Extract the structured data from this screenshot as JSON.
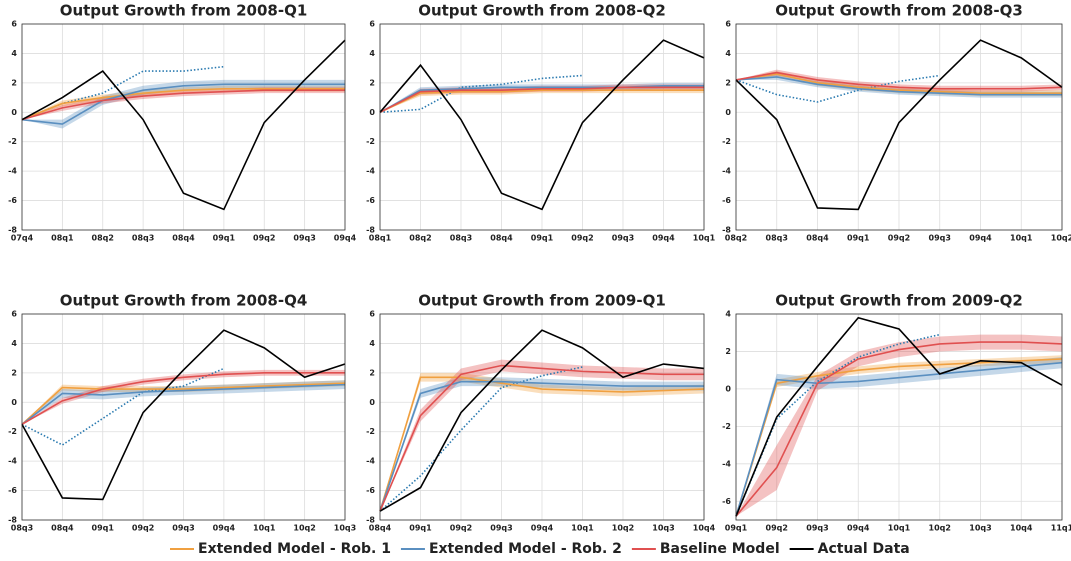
{
  "chart_data": [
    {
      "type": "line",
      "title": "Output Growth from 2008-Q1",
      "categories": [
        "07q4",
        "08q1",
        "08q2",
        "08q3",
        "08q4",
        "09q1",
        "09q2",
        "09q3",
        "09q4"
      ],
      "ylim": [
        -8,
        6
      ],
      "yticks": [
        -8,
        -6,
        -4,
        -2,
        0,
        2,
        4,
        6
      ],
      "grid": true,
      "series": [
        {
          "values": [
            -0.5,
            0.6,
            1.0,
            1.3,
            1.5,
            1.6,
            1.6,
            1.6,
            1.6
          ],
          "lower": [
            -0.5,
            0.4,
            0.8,
            1.1,
            1.3,
            1.4,
            1.4,
            1.4,
            1.4
          ],
          "upper": [
            -0.5,
            0.8,
            1.2,
            1.5,
            1.7,
            1.8,
            1.8,
            1.8,
            1.8
          ]
        },
        {
          "values": [
            -0.5,
            -0.8,
            0.8,
            1.5,
            1.8,
            1.9,
            1.9,
            1.9,
            1.9
          ],
          "lower": [
            -0.5,
            -1.1,
            0.5,
            1.2,
            1.5,
            1.6,
            1.6,
            1.6,
            1.6
          ],
          "upper": [
            -0.5,
            -0.5,
            1.1,
            1.8,
            2.1,
            2.2,
            2.2,
            2.2,
            2.2
          ]
        },
        {
          "values": [
            -0.5,
            0.3,
            0.8,
            1.1,
            1.3,
            1.4,
            1.5,
            1.5,
            1.5
          ],
          "lower": [
            -0.5,
            0.1,
            0.6,
            0.9,
            1.1,
            1.2,
            1.3,
            1.3,
            1.3
          ],
          "upper": [
            -0.5,
            0.5,
            1.0,
            1.3,
            1.5,
            1.6,
            1.7,
            1.7,
            1.7
          ]
        },
        {
          "values": [
            -0.5,
            1.0,
            2.8,
            -0.5,
            -5.5,
            -6.6,
            -0.7,
            2.2,
            4.9
          ]
        },
        {
          "style": "dotted",
          "color": "#2a7ab0",
          "values": [
            -0.5,
            0.6,
            1.3,
            2.8,
            2.8,
            3.1,
            null,
            null,
            null
          ]
        }
      ]
    },
    {
      "type": "line",
      "title": "Output Growth from 2008-Q2",
      "categories": [
        "08q1",
        "08q2",
        "08q3",
        "08q4",
        "09q1",
        "09q2",
        "09q3",
        "09q4",
        "10q1"
      ],
      "ylim": [
        -8,
        6
      ],
      "yticks": [
        -8,
        -6,
        -4,
        -2,
        0,
        2,
        4,
        6
      ],
      "grid": true,
      "series": [
        {
          "values": [
            0,
            1.3,
            1.4,
            1.4,
            1.5,
            1.5,
            1.5,
            1.5,
            1.5
          ],
          "lower": [
            0,
            1.1,
            1.2,
            1.2,
            1.3,
            1.3,
            1.3,
            1.3,
            1.3
          ],
          "upper": [
            0,
            1.5,
            1.6,
            1.6,
            1.7,
            1.7,
            1.7,
            1.7,
            1.7
          ]
        },
        {
          "values": [
            0,
            1.5,
            1.6,
            1.7,
            1.7,
            1.7,
            1.7,
            1.8,
            1.8
          ],
          "lower": [
            0,
            1.3,
            1.4,
            1.5,
            1.5,
            1.5,
            1.5,
            1.6,
            1.6
          ],
          "upper": [
            0,
            1.7,
            1.8,
            1.9,
            1.9,
            1.9,
            1.9,
            2.0,
            2.0
          ]
        },
        {
          "values": [
            0,
            1.4,
            1.5,
            1.5,
            1.6,
            1.6,
            1.7,
            1.7,
            1.7
          ],
          "lower": [
            0,
            1.2,
            1.3,
            1.3,
            1.4,
            1.4,
            1.5,
            1.5,
            1.5
          ],
          "upper": [
            0,
            1.6,
            1.7,
            1.7,
            1.8,
            1.8,
            1.9,
            1.9,
            1.9
          ]
        },
        {
          "values": [
            0,
            3.2,
            -0.5,
            -5.5,
            -6.6,
            -0.7,
            2.2,
            4.9,
            3.7
          ]
        },
        {
          "style": "dotted",
          "color": "#2a7ab0",
          "values": [
            0,
            0.2,
            1.7,
            1.9,
            2.3,
            2.5,
            null,
            null,
            null
          ]
        }
      ]
    },
    {
      "type": "line",
      "title": "Output Growth from 2008-Q3",
      "categories": [
        "08q2",
        "08q3",
        "08q4",
        "09q1",
        "09q2",
        "09q3",
        "09q4",
        "10q1",
        "10q2"
      ],
      "ylim": [
        -8,
        6
      ],
      "yticks": [
        -8,
        -6,
        -4,
        -2,
        0,
        2,
        4,
        6
      ],
      "grid": true,
      "series": [
        {
          "values": [
            2.2,
            2.6,
            2.0,
            1.7,
            1.5,
            1.4,
            1.3,
            1.3,
            1.3
          ],
          "lower": [
            2.2,
            2.4,
            1.8,
            1.5,
            1.3,
            1.2,
            1.1,
            1.1,
            1.1
          ],
          "upper": [
            2.2,
            2.8,
            2.2,
            1.9,
            1.7,
            1.6,
            1.5,
            1.5,
            1.5
          ]
        },
        {
          "values": [
            2.2,
            2.4,
            1.9,
            1.6,
            1.4,
            1.3,
            1.2,
            1.2,
            1.2
          ],
          "lower": [
            2.2,
            2.2,
            1.7,
            1.4,
            1.2,
            1.1,
            1.0,
            1.0,
            1.0
          ],
          "upper": [
            2.2,
            2.6,
            2.1,
            1.8,
            1.6,
            1.5,
            1.4,
            1.4,
            1.4
          ]
        },
        {
          "values": [
            2.2,
            2.7,
            2.2,
            1.9,
            1.7,
            1.6,
            1.6,
            1.6,
            1.7
          ],
          "lower": [
            2.2,
            2.5,
            2.0,
            1.7,
            1.5,
            1.4,
            1.4,
            1.4,
            1.5
          ],
          "upper": [
            2.2,
            2.9,
            2.4,
            2.1,
            1.9,
            1.8,
            1.8,
            1.8,
            1.9
          ]
        },
        {
          "values": [
            2.2,
            -0.5,
            -6.5,
            -6.6,
            -0.7,
            2.2,
            4.9,
            3.7,
            1.7
          ]
        },
        {
          "style": "dotted",
          "color": "#2a7ab0",
          "values": [
            2.2,
            1.2,
            0.7,
            1.5,
            2.1,
            2.5,
            null,
            null,
            null
          ]
        }
      ]
    },
    {
      "type": "line",
      "title": "Output Growth from 2008-Q4",
      "categories": [
        "08q3",
        "08q4",
        "09q1",
        "09q2",
        "09q3",
        "09q4",
        "10q1",
        "10q2",
        "10q3"
      ],
      "ylim": [
        -8,
        6
      ],
      "yticks": [
        -8,
        -6,
        -4,
        -2,
        0,
        2,
        4,
        6
      ],
      "grid": true,
      "series": [
        {
          "values": [
            -1.5,
            1.0,
            0.9,
            0.9,
            0.9,
            1.0,
            1.1,
            1.2,
            1.3
          ],
          "lower": [
            -1.5,
            0.8,
            0.7,
            0.7,
            0.7,
            0.8,
            0.9,
            1.0,
            1.1
          ],
          "upper": [
            -1.5,
            1.2,
            1.1,
            1.1,
            1.1,
            1.2,
            1.3,
            1.4,
            1.5
          ]
        },
        {
          "values": [
            -1.5,
            0.6,
            0.5,
            0.7,
            0.8,
            0.9,
            1.0,
            1.1,
            1.2
          ],
          "lower": [
            -1.5,
            0.3,
            0.2,
            0.4,
            0.5,
            0.6,
            0.7,
            0.8,
            0.9
          ],
          "upper": [
            -1.5,
            0.9,
            0.8,
            1.0,
            1.1,
            1.2,
            1.3,
            1.4,
            1.5
          ]
        },
        {
          "values": [
            -1.5,
            0.1,
            0.9,
            1.4,
            1.7,
            1.9,
            2.0,
            2.0,
            2.0
          ],
          "lower": [
            -1.5,
            -0.1,
            0.7,
            1.2,
            1.5,
            1.7,
            1.8,
            1.8,
            1.8
          ],
          "upper": [
            -1.5,
            0.3,
            1.1,
            1.6,
            1.9,
            2.1,
            2.2,
            2.2,
            2.2
          ]
        },
        {
          "values": [
            -1.5,
            -6.5,
            -6.6,
            -0.7,
            2.2,
            4.9,
            3.7,
            1.7,
            2.6
          ]
        },
        {
          "style": "dotted",
          "color": "#2a7ab0",
          "values": [
            -1.5,
            -2.9,
            -1.1,
            0.7,
            1.1,
            2.3,
            null,
            null,
            null
          ]
        }
      ]
    },
    {
      "type": "line",
      "title": "Output Growth from 2009-Q1",
      "categories": [
        "08q4",
        "09q1",
        "09q2",
        "09q3",
        "09q4",
        "10q1",
        "10q2",
        "10q3",
        "10q4"
      ],
      "ylim": [
        -8,
        6
      ],
      "yticks": [
        -8,
        -6,
        -4,
        -2,
        0,
        2,
        4,
        6
      ],
      "grid": true,
      "series": [
        {
          "values": [
            -7.4,
            1.7,
            1.7,
            1.3,
            0.9,
            0.8,
            0.7,
            0.8,
            0.9
          ],
          "lower": [
            -7.4,
            1.4,
            1.4,
            1.0,
            0.6,
            0.5,
            0.4,
            0.5,
            0.6
          ],
          "upper": [
            -7.4,
            2.0,
            2.0,
            1.6,
            1.2,
            1.1,
            1.0,
            1.1,
            1.2
          ]
        },
        {
          "values": [
            -7.4,
            0.6,
            1.4,
            1.4,
            1.3,
            1.2,
            1.1,
            1.1,
            1.1
          ],
          "lower": [
            -7.4,
            0.3,
            1.1,
            1.1,
            1.0,
            0.9,
            0.8,
            0.8,
            0.8
          ],
          "upper": [
            -7.4,
            0.9,
            1.7,
            1.7,
            1.6,
            1.5,
            1.4,
            1.4,
            1.4
          ]
        },
        {
          "values": [
            -7.4,
            -0.9,
            1.9,
            2.5,
            2.3,
            2.1,
            2.0,
            1.9,
            1.9
          ],
          "lower": [
            -7.4,
            -1.3,
            1.5,
            2.1,
            1.9,
            1.7,
            1.6,
            1.5,
            1.5
          ],
          "upper": [
            -7.4,
            -0.5,
            2.3,
            2.9,
            2.7,
            2.5,
            2.4,
            2.3,
            2.3
          ]
        },
        {
          "values": [
            -7.4,
            -5.8,
            -0.7,
            2.2,
            4.9,
            3.7,
            1.7,
            2.6,
            2.3
          ]
        },
        {
          "style": "dotted",
          "color": "#2a7ab0",
          "values": [
            -7.4,
            -5.0,
            -1.9,
            1.0,
            1.8,
            2.4,
            null,
            null,
            null
          ]
        }
      ]
    },
    {
      "type": "line",
      "title": "Output Growth from 2009-Q2",
      "categories": [
        "09q1",
        "09q2",
        "09q3",
        "09q4",
        "10q1",
        "10q2",
        "10q3",
        "10q4",
        "11q1"
      ],
      "ylim": [
        -7,
        4
      ],
      "yticks": [
        -6,
        -4,
        -2,
        0,
        2,
        4
      ],
      "grid": true,
      "series": [
        {
          "values": [
            -6.8,
            0.3,
            0.7,
            1.0,
            1.2,
            1.3,
            1.4,
            1.5,
            1.6
          ],
          "lower": [
            -6.8,
            0.1,
            0.5,
            0.8,
            1.0,
            1.1,
            1.2,
            1.3,
            1.4
          ],
          "upper": [
            -6.8,
            0.5,
            0.9,
            1.2,
            1.4,
            1.5,
            1.6,
            1.7,
            1.8
          ]
        },
        {
          "values": [
            -6.8,
            0.5,
            0.3,
            0.4,
            0.6,
            0.8,
            1.0,
            1.2,
            1.4
          ],
          "lower": [
            -6.8,
            0.2,
            0.0,
            0.1,
            0.3,
            0.5,
            0.7,
            0.9,
            1.1
          ],
          "upper": [
            -6.8,
            0.8,
            0.6,
            0.7,
            0.9,
            1.1,
            1.3,
            1.5,
            1.7
          ]
        },
        {
          "values": [
            -6.8,
            -4.2,
            0.3,
            1.6,
            2.1,
            2.4,
            2.5,
            2.5,
            2.4
          ],
          "lower": [
            -6.8,
            -5.4,
            -0.1,
            1.2,
            1.7,
            2.0,
            2.1,
            2.1,
            2.0
          ],
          "upper": [
            -6.8,
            -3.0,
            0.7,
            2.0,
            2.5,
            2.8,
            2.9,
            2.9,
            2.8
          ]
        },
        {
          "values": [
            -6.8,
            -1.5,
            1.2,
            3.8,
            3.2,
            0.8,
            1.5,
            1.4,
            0.2
          ]
        },
        {
          "style": "dotted",
          "color": "#2a7ab0",
          "values": [
            -6.8,
            -1.6,
            0.4,
            1.7,
            2.4,
            2.9,
            null,
            null,
            null
          ]
        }
      ]
    }
  ],
  "legend": [
    {
      "name": "Extended Model - Rob. 1",
      "color": "#f0a040"
    },
    {
      "name": "Extended Model - Rob. 2",
      "color": "#5a8fc0"
    },
    {
      "name": "Baseline Model",
      "color": "#e05050"
    },
    {
      "name": "Actual Data",
      "color": "#000000"
    }
  ]
}
